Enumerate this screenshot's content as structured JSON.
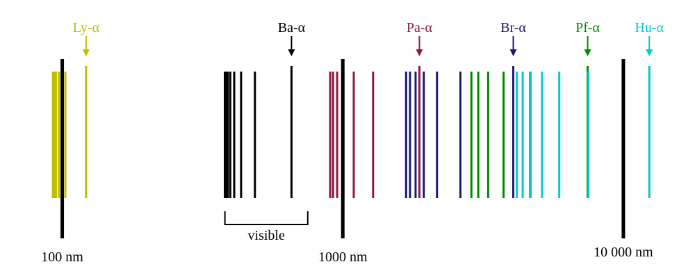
{
  "chart_data": {
    "type": "spectrum",
    "xscale": "log",
    "xlim": [
      60,
      18000
    ],
    "xticks": [
      {
        "value": 100,
        "label": "100 nm"
      },
      {
        "value": 1000,
        "label": "1000 nm"
      },
      {
        "value": 10000,
        "label": "10 000 nm"
      }
    ],
    "series": [
      {
        "label": "Ly-α",
        "color": "#bfbf00",
        "values": [
          121.6,
          102.6,
          97.3,
          95.0,
          93.8,
          93.1,
          92.6
        ]
      },
      {
        "label": "Ba-α",
        "color": "#000000",
        "values": [
          656.3,
          486.1,
          434.0,
          410.2,
          397.0,
          388.9,
          383.5,
          379.8
        ]
      },
      {
        "label": "Pa-α",
        "color": "#8b1a45",
        "values": [
          1875,
          1282,
          1094,
          1005,
          954.6,
          922.9,
          901.5
        ]
      },
      {
        "label": "Br-α",
        "color": "#1a1a70",
        "values": [
          4051,
          2625,
          2166,
          1944,
          1817,
          1736,
          1681
        ]
      },
      {
        "label": "Pf-α",
        "color": "#008a00",
        "values": [
          7460,
          4654,
          3741,
          3297,
          3039,
          2873
        ]
      },
      {
        "label": "Hu-α",
        "color": "#00cccc",
        "values": [
          12370,
          7503,
          5908,
          5129,
          4673,
          4376,
          4171
        ]
      }
    ],
    "visible": {
      "label": "visible",
      "range": [
        380,
        750
      ]
    }
  }
}
